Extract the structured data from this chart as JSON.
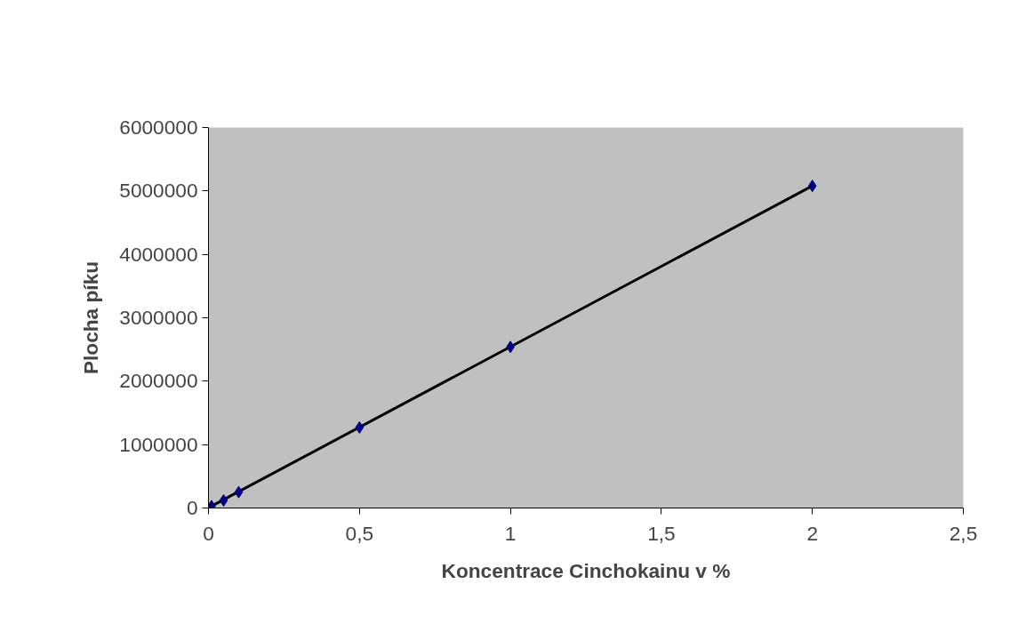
{
  "chart_data": {
    "type": "scatter",
    "xlabel": "Koncentrace Cinchokainu v %",
    "ylabel": "Plocha píku",
    "xlim": [
      0,
      2.5
    ],
    "ylim": [
      0,
      6000000
    ],
    "xticks": [
      0,
      {
        "value": 0.5,
        "label": "0,5"
      },
      1,
      {
        "value": 1.5,
        "label": "1,5"
      },
      2,
      {
        "value": 2.5,
        "label": "2,5"
      }
    ],
    "yticks": [
      0,
      1000000,
      2000000,
      3000000,
      4000000,
      5000000,
      6000000
    ],
    "grid": false,
    "series": [
      {
        "type": "line",
        "marker": "none",
        "color": "#000000",
        "x": [
          0.01,
          2
        ],
        "values": [
          30000,
          5080000
        ]
      },
      {
        "marker": "diamond",
        "color": "#000080",
        "x": [
          0.01,
          0.05,
          0.1,
          0.5,
          1,
          2
        ],
        "values": [
          30000,
          120000,
          250000,
          1270000,
          2540000,
          5080000
        ]
      }
    ]
  }
}
